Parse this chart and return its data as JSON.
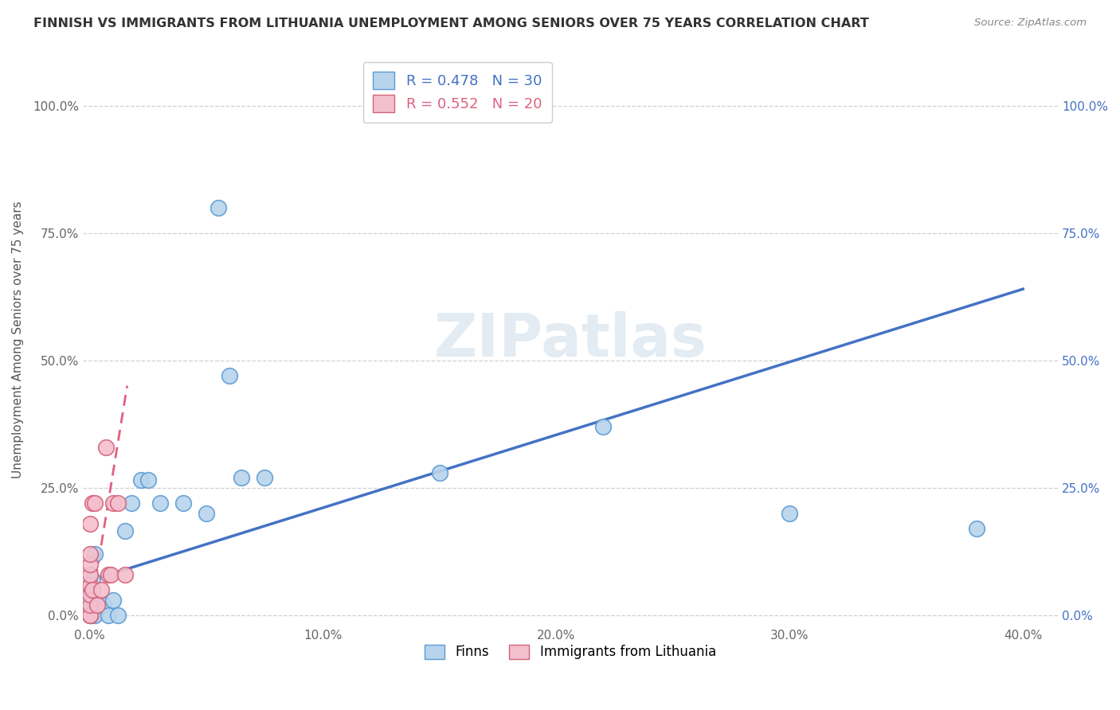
{
  "title": "FINNISH VS IMMIGRANTS FROM LITHUANIA UNEMPLOYMENT AMONG SENIORS OVER 75 YEARS CORRELATION CHART",
  "source": "Source: ZipAtlas.com",
  "ylabel": "Unemployment Among Seniors over 75 years",
  "xlim": [
    -0.003,
    0.415
  ],
  "ylim": [
    -0.02,
    1.1
  ],
  "x_tick_vals": [
    0.0,
    0.1,
    0.2,
    0.3,
    0.4
  ],
  "x_tick_labels": [
    "0.0%",
    "10.0%",
    "20.0%",
    "30.0%",
    "40.0%"
  ],
  "y_tick_vals": [
    0.0,
    0.25,
    0.5,
    0.75,
    1.0
  ],
  "y_tick_labels": [
    "0.0%",
    "25.0%",
    "50.0%",
    "75.0%",
    "100.0%"
  ],
  "finns_R": 0.478,
  "finns_N": 30,
  "lithuanians_R": 0.552,
  "lithuanians_N": 20,
  "finns_color": "#b8d4ec",
  "finns_edge": "#5b9bd5",
  "lith_color": "#f4bfce",
  "lith_edge": "#d4637a",
  "trendline_finns_color": "#4472c4",
  "trendline_lith_color": "#e06080",
  "right_axis_color": "#4472c4",
  "watermark_color": "#c8d8e8",
  "legend_label_finns": "Finns",
  "legend_label_lith": "Immigrants from Lithuania",
  "finns_x": [
    0.0,
    0.0,
    0.0,
    0.0,
    0.001,
    0.001,
    0.001,
    0.002,
    0.002,
    0.003,
    0.004,
    0.006,
    0.008,
    0.01,
    0.012,
    0.015,
    0.018,
    0.022,
    0.025,
    0.03,
    0.04,
    0.05,
    0.055,
    0.06,
    0.065,
    0.075,
    0.15,
    0.22,
    0.3,
    0.38
  ],
  "finns_y": [
    0.0,
    0.02,
    0.04,
    0.06,
    0.0,
    0.03,
    0.07,
    0.0,
    0.12,
    0.02,
    0.02,
    0.02,
    0.0,
    0.03,
    0.0,
    0.165,
    0.22,
    0.265,
    0.265,
    0.22,
    0.22,
    0.2,
    0.8,
    0.47,
    0.27,
    0.27,
    0.28,
    0.37,
    0.2,
    0.17
  ],
  "lith_x": [
    0.0,
    0.0,
    0.0,
    0.0,
    0.0,
    0.0,
    0.0,
    0.0,
    0.0,
    0.001,
    0.001,
    0.002,
    0.003,
    0.005,
    0.007,
    0.008,
    0.009,
    0.01,
    0.012,
    0.015
  ],
  "lith_y": [
    0.0,
    0.0,
    0.02,
    0.04,
    0.06,
    0.08,
    0.1,
    0.12,
    0.18,
    0.05,
    0.22,
    0.22,
    0.02,
    0.05,
    0.33,
    0.08,
    0.08,
    0.22,
    0.22,
    0.08
  ],
  "finns_trend_x": [
    0.0,
    0.4
  ],
  "finns_trend_y": [
    0.068,
    0.64
  ],
  "lith_trend_x": [
    0.0,
    0.016
  ],
  "lith_trend_y": [
    0.0,
    0.45
  ]
}
